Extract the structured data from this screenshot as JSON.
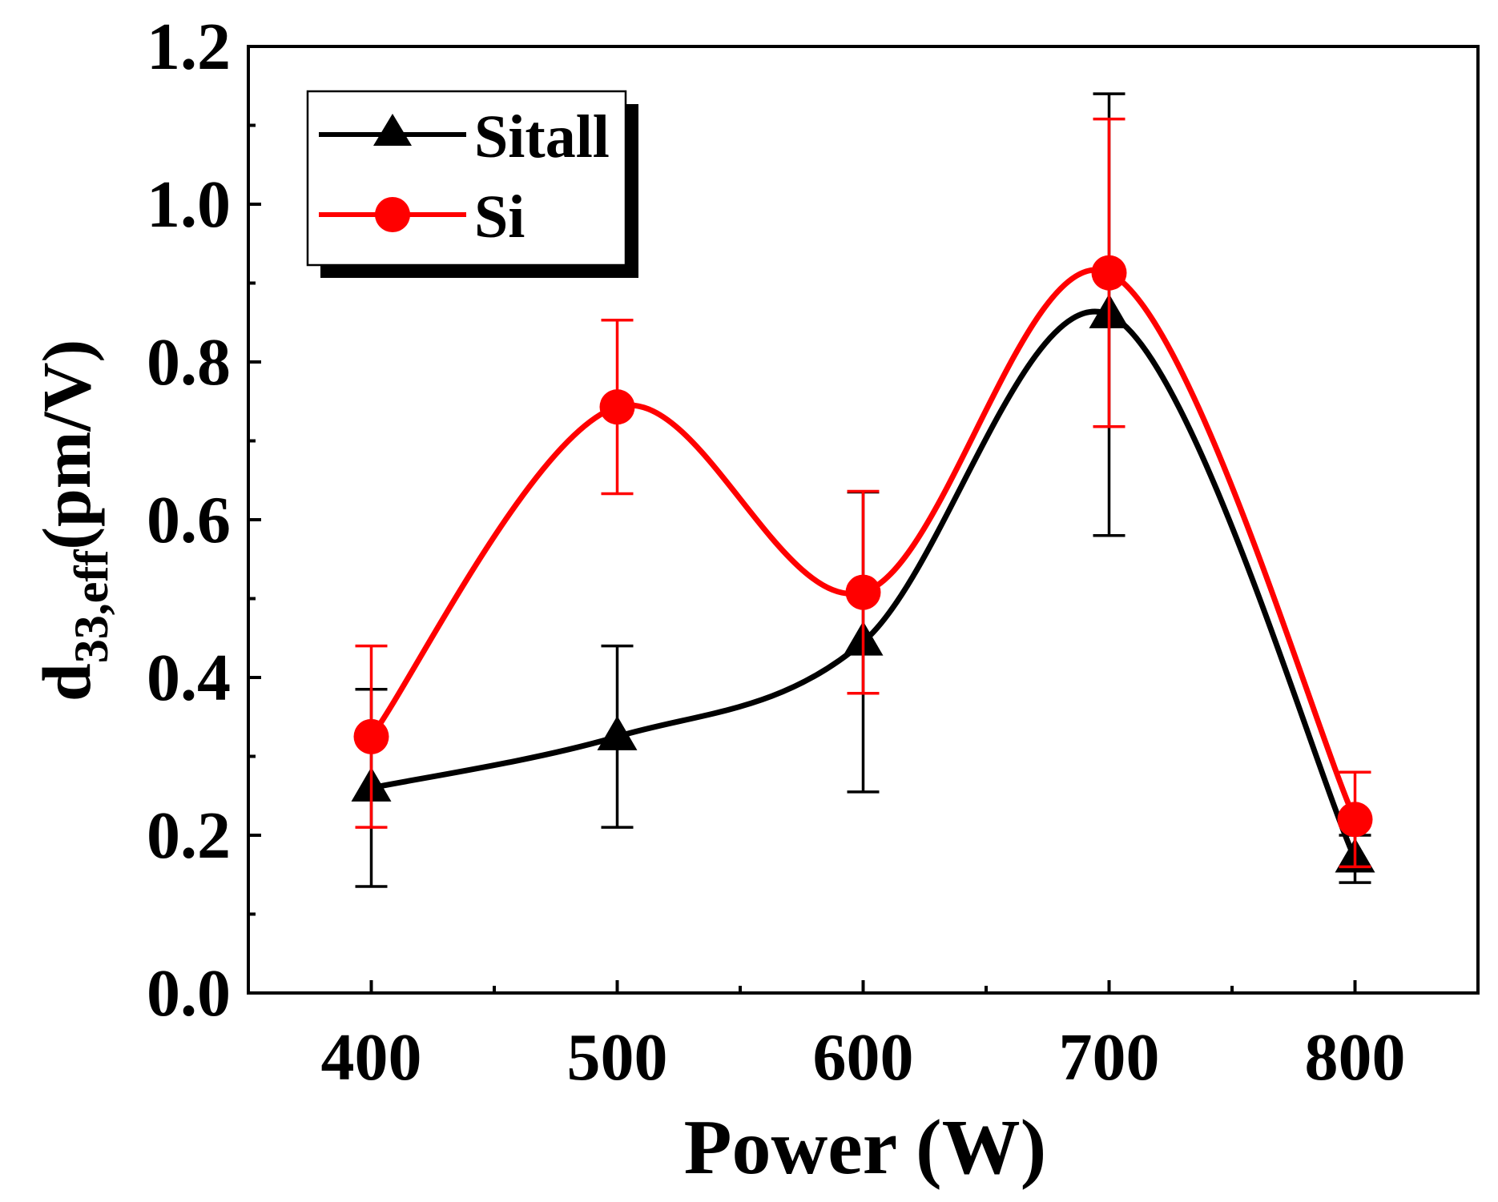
{
  "chart_data": {
    "type": "line",
    "xlabel": "Power (W)",
    "ylabel": {
      "main": "d",
      "subscript": "33,eff",
      "unit": "(pm/V)"
    },
    "x": [
      400,
      500,
      600,
      700,
      800
    ],
    "xlim": [
      350,
      850
    ],
    "ylim": [
      0,
      1.2
    ],
    "xticks": [
      400,
      500,
      600,
      700,
      800
    ],
    "yticks": [
      0.0,
      0.2,
      0.4,
      0.6,
      0.8,
      1.0,
      1.2
    ],
    "xtick_labels": [
      "400",
      "500",
      "600",
      "700",
      "800"
    ],
    "ytick_labels": [
      "0.0",
      "0.2",
      "0.4",
      "0.6",
      "0.8",
      "1.0",
      "1.2"
    ],
    "grid": false,
    "legend_position": "top-left",
    "series": [
      {
        "name": "Sitall",
        "color": "#000000",
        "marker": "triangle",
        "values": [
          0.26,
          0.325,
          0.445,
          0.86,
          0.17
        ],
        "error": [
          0.125,
          0.115,
          0.19,
          0.28,
          0.03
        ]
      },
      {
        "name": "Si",
        "color": "#ff0000",
        "marker": "circle",
        "values": [
          0.325,
          0.743,
          0.508,
          0.913,
          0.22
        ],
        "error": [
          0.115,
          0.11,
          0.128,
          0.195,
          0.06
        ]
      }
    ]
  }
}
